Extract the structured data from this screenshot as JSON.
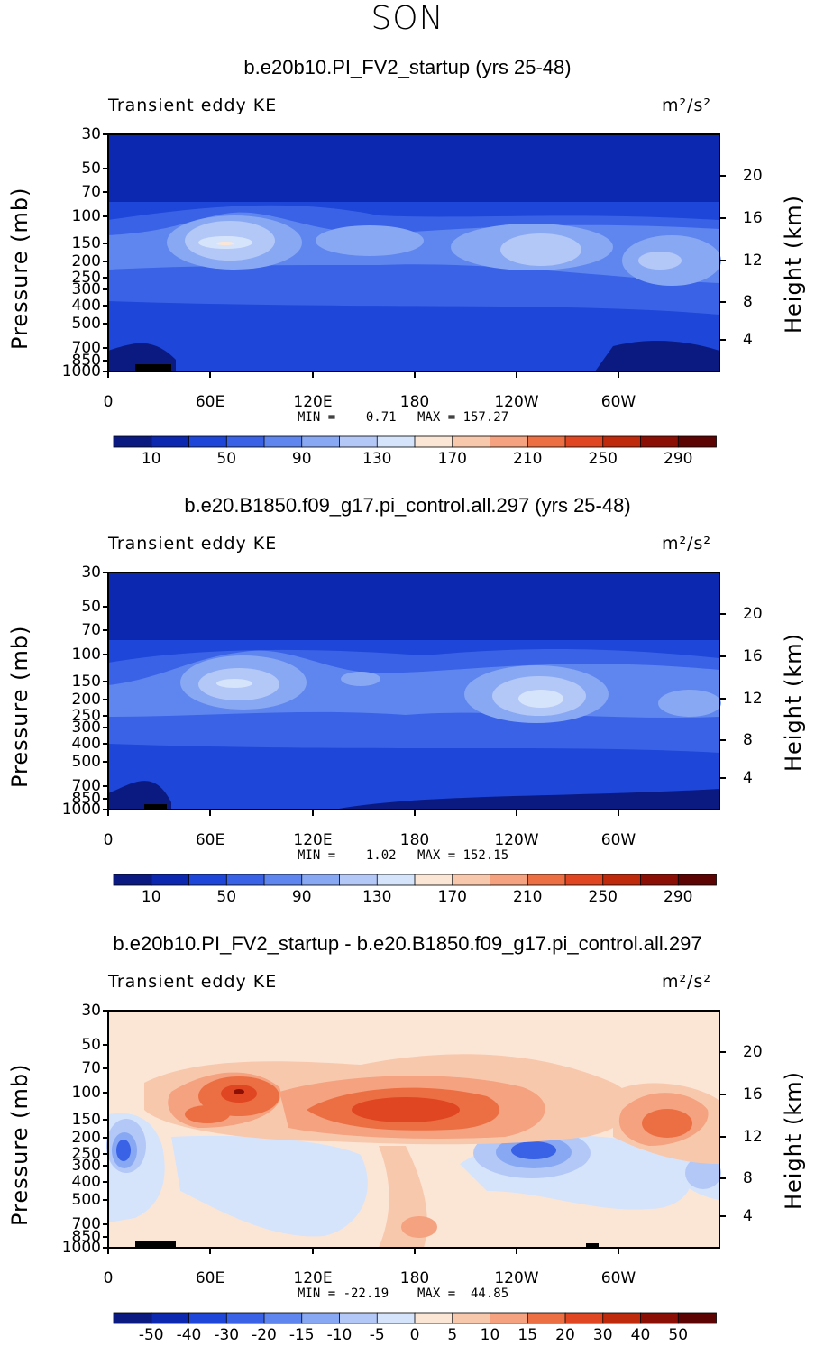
{
  "season": "SON",
  "colors": {
    "ke_scale": [
      "#0a1a80",
      "#0c27b0",
      "#1e46d8",
      "#3a62e6",
      "#5f86ee",
      "#88a8f3",
      "#b3c8f7",
      "#d6e4fb",
      "#fbe6d6",
      "#f8c8ad",
      "#f4a27f",
      "#ec6f43",
      "#e04621",
      "#c02a0c",
      "#8c0f05",
      "#5c0303"
    ],
    "diff_scale": [
      "#0a1a80",
      "#0c27b0",
      "#1e46d8",
      "#3a62e6",
      "#5f86ee",
      "#88a8f3",
      "#b3c8f7",
      "#d6e4fb",
      "#fbe6d6",
      "#f8c8ad",
      "#f4a27f",
      "#ec6f43",
      "#e04621",
      "#c02a0c",
      "#8c0f05",
      "#5c0303"
    ]
  },
  "chart_data": [
    {
      "type": "heatmap",
      "title": "b.e20b10.PI_FV2_startup (yrs 25-48)",
      "left_label": "Transient eddy KE",
      "units": "m²/s²",
      "ylabel": "Pressure (mb)",
      "y2label": "Height (km)",
      "x_ticks": [
        "0",
        "60E",
        "120E",
        "180",
        "120W",
        "60W"
      ],
      "y_ticks": [
        "30",
        "50",
        "70",
        "100",
        "150",
        "200",
        "250",
        "300",
        "400",
        "500",
        "700",
        "850",
        "1000"
      ],
      "y2_ticks": [
        "20",
        "16",
        "12",
        "8",
        "4"
      ],
      "min_label": "MIN =    0.71",
      "max_label": "MAX = 157.27",
      "colorbar_labels": [
        "10",
        "50",
        "90",
        "130",
        "170",
        "210",
        "250",
        "290"
      ]
    },
    {
      "type": "heatmap",
      "title": "b.e20.B1850.f09_g17.pi_control.all.297 (yrs 25-48)",
      "left_label": "Transient eddy KE",
      "units": "m²/s²",
      "ylabel": "Pressure (mb)",
      "y2label": "Height (km)",
      "x_ticks": [
        "0",
        "60E",
        "120E",
        "180",
        "120W",
        "60W"
      ],
      "y_ticks": [
        "30",
        "50",
        "70",
        "100",
        "150",
        "200",
        "250",
        "300",
        "400",
        "500",
        "700",
        "850",
        "1000"
      ],
      "y2_ticks": [
        "20",
        "16",
        "12",
        "8",
        "4"
      ],
      "min_label": "MIN =    1.02",
      "max_label": "MAX = 152.15",
      "colorbar_labels": [
        "10",
        "50",
        "90",
        "130",
        "170",
        "210",
        "250",
        "290"
      ]
    },
    {
      "type": "heatmap",
      "title": "b.e20b10.PI_FV2_startup - b.e20.B1850.f09_g17.pi_control.all.297",
      "left_label": "Transient eddy KE",
      "units": "m²/s²",
      "ylabel": "Pressure (mb)",
      "y2label": "Height (km)",
      "x_ticks": [
        "0",
        "60E",
        "120E",
        "180",
        "120W",
        "60W"
      ],
      "y_ticks": [
        "30",
        "50",
        "70",
        "100",
        "150",
        "200",
        "250",
        "300",
        "400",
        "500",
        "700",
        "850",
        "1000"
      ],
      "y2_ticks": [
        "20",
        "16",
        "12",
        "8",
        "4"
      ],
      "min_label": "MIN = -22.19",
      "max_label": "MAX =  44.85",
      "colorbar_labels": [
        "-50",
        "-40",
        "-30",
        "-20",
        "-15",
        "-10",
        "-5",
        "0",
        "5",
        "10",
        "15",
        "20",
        "30",
        "40",
        "50"
      ]
    }
  ]
}
